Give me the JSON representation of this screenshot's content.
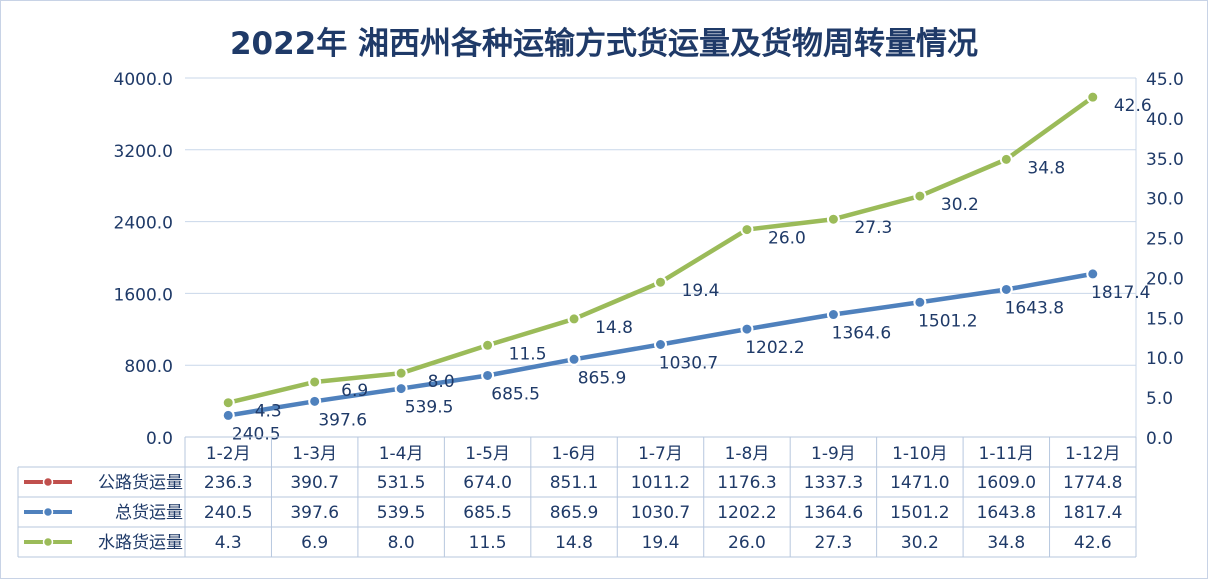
{
  "chart_data": {
    "type": "line",
    "title": "2022年 湘西州各种运输方式货运量及货物周转量情况",
    "categories": [
      "1-2月",
      "1-3月",
      "1-4月",
      "1-5月",
      "1-6月",
      "1-7月",
      "1-8月",
      "1-9月",
      "1-10月",
      "1-11月",
      "1-12月"
    ],
    "y_left": {
      "ticks": [
        "0.0",
        "800.0",
        "1600.0",
        "2400.0",
        "3200.0",
        "4000.0"
      ],
      "ylim": [
        0,
        4000
      ]
    },
    "y_right": {
      "ticks": [
        "0.0",
        "5.0",
        "10.0",
        "15.0",
        "20.0",
        "25.0",
        "30.0",
        "35.0",
        "40.0",
        "45.0"
      ],
      "ylim": [
        0,
        45
      ]
    },
    "grid": true,
    "legend": "data-table",
    "series": [
      {
        "name": "公路货运量",
        "axis": "right",
        "color": "#c0504d",
        "values": [
          236.3,
          390.7,
          531.5,
          674.0,
          851.1,
          1011.2,
          1176.3,
          1337.3,
          1471.0,
          1609.0,
          1774.8
        ],
        "labels": [
          "236.3",
          "390.7",
          "531.5",
          "674.0",
          "851.1",
          "1011.2",
          "1176.3",
          "1337.3",
          "1471.0",
          "1609.0",
          "1774.8"
        ]
      },
      {
        "name": "总货运量",
        "axis": "left",
        "color": "#4f81bd",
        "values": [
          240.5,
          397.6,
          539.5,
          685.5,
          865.9,
          1030.7,
          1202.2,
          1364.6,
          1501.2,
          1643.8,
          1817.4
        ],
        "labels": [
          "240.5",
          "397.6",
          "539.5",
          "685.5",
          "865.9",
          "1030.7",
          "1202.2",
          "1364.6",
          "1501.2",
          "1643.8",
          "1817.4"
        ]
      },
      {
        "name": "水路货运量",
        "axis": "right",
        "color": "#9bbb59",
        "values": [
          4.3,
          6.9,
          8.0,
          11.5,
          14.8,
          19.4,
          26.0,
          27.3,
          30.2,
          34.8,
          42.6
        ],
        "labels": [
          "4.3",
          "6.9",
          "8.0",
          "11.5",
          "14.8",
          "19.4",
          "26.0",
          "27.3",
          "30.2",
          "34.8",
          "42.6"
        ]
      }
    ]
  }
}
